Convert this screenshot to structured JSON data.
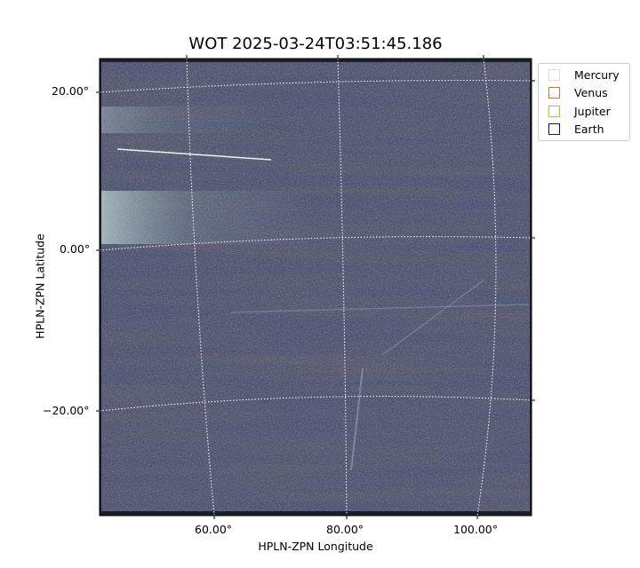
{
  "chart_data": {
    "type": "heatmap",
    "title": "WOT 2025-03-24T03:51:45.186",
    "xlabel": "HPLN-ZPN Longitude",
    "ylabel": "HPLN-ZPN Latitude",
    "x_ticks": [
      "60.00°",
      "80.00°",
      "100.00°"
    ],
    "y_ticks": [
      "20.00°",
      "0.00°",
      "−20.00°"
    ],
    "grid": true,
    "grid_style": "dotted white world-coordinate grid",
    "colormap": "bone",
    "legend": {
      "placement": "outside top-right",
      "entries": [
        {
          "name": "Mercury",
          "color": "#dddddd"
        },
        {
          "name": "Venus",
          "color": "#c8783c"
        },
        {
          "name": "Jupiter",
          "color": "#ffa500"
        },
        {
          "name": "Earth",
          "color": "#0000ff"
        }
      ]
    }
  }
}
